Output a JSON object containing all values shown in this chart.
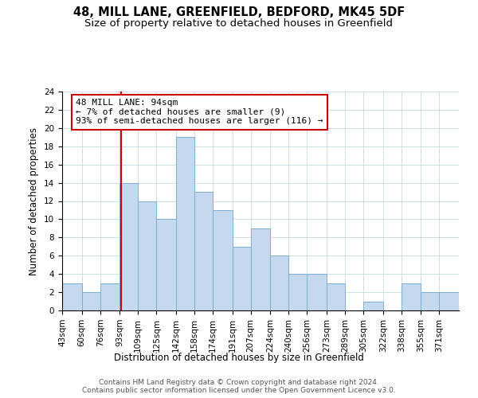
{
  "title": "48, MILL LANE, GREENFIELD, BEDFORD, MK45 5DF",
  "subtitle": "Size of property relative to detached houses in Greenfield",
  "xlabel": "Distribution of detached houses by size in Greenfield",
  "ylabel": "Number of detached properties",
  "bin_labels": [
    "43sqm",
    "60sqm",
    "76sqm",
    "93sqm",
    "109sqm",
    "125sqm",
    "142sqm",
    "158sqm",
    "174sqm",
    "191sqm",
    "207sqm",
    "224sqm",
    "240sqm",
    "256sqm",
    "273sqm",
    "289sqm",
    "305sqm",
    "322sqm",
    "338sqm",
    "355sqm",
    "371sqm"
  ],
  "bin_edges": [
    43,
    60,
    76,
    93,
    109,
    125,
    142,
    158,
    174,
    191,
    207,
    224,
    240,
    256,
    273,
    289,
    305,
    322,
    338,
    355,
    371,
    388
  ],
  "counts": [
    3,
    2,
    3,
    14,
    12,
    10,
    19,
    13,
    11,
    7,
    9,
    6,
    4,
    4,
    3,
    0,
    1,
    0,
    3,
    2,
    2
  ],
  "bar_color": "#c5d8ed",
  "bar_edge_color": "#7bafd4",
  "vline_x": 94,
  "vline_color": "#cc0000",
  "annotation_line1": "48 MILL LANE: 94sqm",
  "annotation_line2": "← 7% of detached houses are smaller (9)",
  "annotation_line3": "93% of semi-detached houses are larger (116) →",
  "annotation_box_edgecolor": "#cc0000",
  "annotation_box_facecolor": "#ffffff",
  "ylim": [
    0,
    24
  ],
  "yticks": [
    0,
    2,
    4,
    6,
    8,
    10,
    12,
    14,
    16,
    18,
    20,
    22,
    24
  ],
  "footer_text": "Contains HM Land Registry data © Crown copyright and database right 2024.\nContains public sector information licensed under the Open Government Licence v3.0.",
  "background_color": "#ffffff",
  "grid_color": "#d0dce8",
  "title_fontsize": 10.5,
  "subtitle_fontsize": 9.5,
  "ylabel_fontsize": 8.5,
  "xlabel_fontsize": 8.5,
  "tick_fontsize": 7.5,
  "annotation_fontsize": 8,
  "footer_fontsize": 6.5
}
